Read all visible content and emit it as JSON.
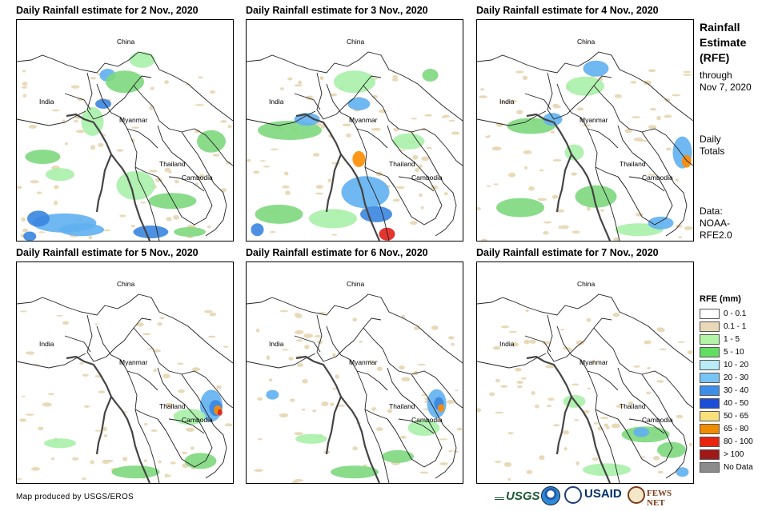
{
  "panels": [
    {
      "title": "Daily Rainfall estimate for 2 Nov., 2020",
      "rain": [
        [
          0.12,
          0.62,
          22,
          9,
          "#7dd87d"
        ],
        [
          0.22,
          0.92,
          40,
          12,
          "#5fb0f0"
        ],
        [
          0.1,
          0.9,
          14,
          10,
          "#3a85e0"
        ],
        [
          0.35,
          0.46,
          14,
          18,
          "#a8f0a8"
        ],
        [
          0.42,
          0.25,
          10,
          8,
          "#5fb0f0"
        ],
        [
          0.5,
          0.28,
          24,
          14,
          "#7dd87d"
        ],
        [
          0.58,
          0.18,
          16,
          10,
          "#a8f0a8"
        ],
        [
          0.55,
          0.75,
          24,
          18,
          "#a8f0a8"
        ],
        [
          0.72,
          0.82,
          30,
          10,
          "#7dd87d"
        ],
        [
          0.9,
          0.55,
          18,
          14,
          "#7dd87d"
        ],
        [
          0.3,
          0.95,
          28,
          8,
          "#5fb0f0"
        ],
        [
          0.62,
          0.96,
          22,
          8,
          "#3a85e0"
        ],
        [
          0.06,
          0.98,
          8,
          6,
          "#3a85e0"
        ],
        [
          0.4,
          0.38,
          10,
          6,
          "#3a85e0"
        ],
        [
          0.2,
          0.7,
          18,
          8,
          "#a8f0a8"
        ],
        [
          0.8,
          0.96,
          20,
          6,
          "#7dd87d"
        ]
      ]
    },
    {
      "title": "Daily Rainfall estimate for 3 Nov., 2020",
      "rain": [
        [
          0.2,
          0.5,
          40,
          12,
          "#7dd87d"
        ],
        [
          0.28,
          0.45,
          16,
          8,
          "#5fb0f0"
        ],
        [
          0.5,
          0.28,
          26,
          14,
          "#a8f0a8"
        ],
        [
          0.52,
          0.38,
          14,
          8,
          "#5fb0f0"
        ],
        [
          0.55,
          0.78,
          30,
          20,
          "#5fb0f0"
        ],
        [
          0.6,
          0.88,
          20,
          10,
          "#3a85e0"
        ],
        [
          0.65,
          0.97,
          10,
          8,
          "#e0201a"
        ],
        [
          0.52,
          0.63,
          8,
          10,
          "#ff8c00"
        ],
        [
          0.4,
          0.9,
          30,
          12,
          "#a8f0a8"
        ],
        [
          0.15,
          0.88,
          30,
          12,
          "#7dd87d"
        ],
        [
          0.75,
          0.55,
          20,
          10,
          "#a8f0a8"
        ],
        [
          0.85,
          0.25,
          10,
          8,
          "#7dd87d"
        ],
        [
          0.05,
          0.95,
          8,
          8,
          "#3a85e0"
        ]
      ]
    },
    {
      "title": "Daily Rainfall estimate for 4 Nov., 2020",
      "rain": [
        [
          0.25,
          0.48,
          30,
          10,
          "#7dd87d"
        ],
        [
          0.35,
          0.45,
          12,
          8,
          "#5fb0f0"
        ],
        [
          0.5,
          0.3,
          24,
          12,
          "#a8f0a8"
        ],
        [
          0.55,
          0.22,
          16,
          10,
          "#5fb0f0"
        ],
        [
          0.95,
          0.6,
          12,
          20,
          "#5fb0f0"
        ],
        [
          0.97,
          0.64,
          6,
          8,
          "#ff8c00"
        ],
        [
          0.55,
          0.8,
          26,
          14,
          "#7dd87d"
        ],
        [
          0.75,
          0.95,
          30,
          8,
          "#a8f0a8"
        ],
        [
          0.85,
          0.92,
          16,
          8,
          "#5fb0f0"
        ],
        [
          0.2,
          0.85,
          30,
          12,
          "#7dd87d"
        ],
        [
          0.45,
          0.6,
          12,
          10,
          "#a8f0a8"
        ]
      ]
    },
    {
      "title": "Daily Rainfall estimate for 5 Nov., 2020",
      "rain": [
        [
          0.9,
          0.65,
          14,
          20,
          "#5fb0f0"
        ],
        [
          0.92,
          0.66,
          8,
          10,
          "#3a85e0"
        ],
        [
          0.93,
          0.67,
          5,
          6,
          "#ff8c00"
        ],
        [
          0.94,
          0.68,
          3,
          4,
          "#e0201a"
        ],
        [
          0.8,
          0.7,
          20,
          10,
          "#a8f0a8"
        ],
        [
          0.55,
          0.95,
          30,
          8,
          "#7dd87d"
        ],
        [
          0.2,
          0.82,
          20,
          6,
          "#a8f0a8"
        ],
        [
          0.85,
          0.9,
          20,
          10,
          "#7dd87d"
        ]
      ]
    },
    {
      "title": "Daily Rainfall estimate for 6 Nov., 2020",
      "rain": [
        [
          0.88,
          0.64,
          12,
          18,
          "#5fb0f0"
        ],
        [
          0.89,
          0.64,
          6,
          8,
          "#3a85e0"
        ],
        [
          0.9,
          0.66,
          4,
          5,
          "#ff8c00"
        ],
        [
          0.12,
          0.6,
          8,
          6,
          "#5fb0f0"
        ],
        [
          0.82,
          0.75,
          20,
          10,
          "#a8f0a8"
        ],
        [
          0.5,
          0.95,
          30,
          8,
          "#7dd87d"
        ],
        [
          0.3,
          0.8,
          20,
          6,
          "#a8f0a8"
        ],
        [
          0.7,
          0.88,
          20,
          8,
          "#7dd87d"
        ]
      ]
    },
    {
      "title": "Daily Rainfall estimate for 7 Nov., 2020",
      "rain": [
        [
          0.78,
          0.78,
          30,
          10,
          "#7dd87d"
        ],
        [
          0.76,
          0.77,
          10,
          6,
          "#5fb0f0"
        ],
        [
          0.45,
          0.63,
          14,
          8,
          "#a8f0a8"
        ],
        [
          0.9,
          0.85,
          18,
          10,
          "#7dd87d"
        ],
        [
          0.6,
          0.94,
          30,
          8,
          "#a8f0a8"
        ],
        [
          0.95,
          0.95,
          8,
          6,
          "#5fb0f0"
        ]
      ]
    }
  ],
  "map_labels": {
    "china": "China",
    "india": "India",
    "myanmar": "Myanmar",
    "thailand": "Thailand",
    "cambodia": "Cambodia"
  },
  "side": {
    "title_line1": "Rainfall",
    "title_line2": "Estimate",
    "title_line3": "(RFE)",
    "through": "through",
    "date": "Nov 7, 2020",
    "daily": "Daily",
    "totals": "Totals",
    "data_label": "Data:",
    "source_line1": "NOAA-",
    "source_line2": "RFE2.0"
  },
  "legend": {
    "title": "RFE (mm)",
    "items": [
      {
        "label": "0 - 0.1",
        "color": "#ffffff"
      },
      {
        "label": "0.1 - 1",
        "color": "#e9d9b8"
      },
      {
        "label": "1 - 5",
        "color": "#b2f5a5"
      },
      {
        "label": "5 - 10",
        "color": "#62de62"
      },
      {
        "label": "10 - 20",
        "color": "#b8ecf7"
      },
      {
        "label": "20 - 30",
        "color": "#78c4f5"
      },
      {
        "label": "30 - 40",
        "color": "#3d8ee8"
      },
      {
        "label": "40 - 50",
        "color": "#1c4fd8"
      },
      {
        "label": "50 - 65",
        "color": "#f8e07a"
      },
      {
        "label": "65 - 80",
        "color": "#f08c00"
      },
      {
        "label": "80 - 100",
        "color": "#e8240f"
      },
      {
        "label": "> 100",
        "color": "#a01818"
      },
      {
        "label": "No Data",
        "color": "#8c8c8c"
      }
    ]
  },
  "credit": "Map produced by USGS/EROS",
  "logos": {
    "usgs": "USGS",
    "usaid": "USAID",
    "fews": "FEWS NET"
  }
}
